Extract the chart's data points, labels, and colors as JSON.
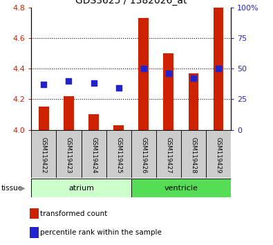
{
  "title": "GDS3625 / 1382026_at",
  "samples": [
    "GSM119422",
    "GSM119423",
    "GSM119424",
    "GSM119425",
    "GSM119426",
    "GSM119427",
    "GSM119428",
    "GSM119429"
  ],
  "transformed_count": [
    4.15,
    4.22,
    4.1,
    4.03,
    4.73,
    4.5,
    4.37,
    4.8
  ],
  "percentile_rank": [
    37,
    40,
    38,
    34,
    50,
    46,
    42,
    50
  ],
  "ylim_left": [
    4.0,
    4.8
  ],
  "ylim_right": [
    0,
    100
  ],
  "yticks_left": [
    4.0,
    4.2,
    4.4,
    4.6,
    4.8
  ],
  "ytick_labels_right": [
    "0",
    "25",
    "50",
    "75",
    "100%"
  ],
  "bar_color": "#cc2200",
  "dot_color": "#2222cc",
  "bar_width": 0.4,
  "dot_size": 40,
  "sample_box_color": "#cccccc",
  "tissue_groups": [
    {
      "label": "atrium",
      "start": 0,
      "end": 3,
      "color": "#ccffcc"
    },
    {
      "label": "ventricle",
      "start": 4,
      "end": 7,
      "color": "#55dd55"
    }
  ],
  "tissue_label": "tissue",
  "legend_red": "transformed count",
  "legend_blue": "percentile rank within the sample",
  "title_fontsize": 10,
  "tick_fontsize": 8,
  "label_fontsize": 7.5
}
